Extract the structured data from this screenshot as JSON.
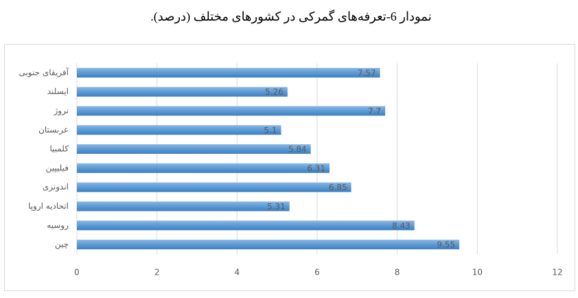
{
  "chart_data": {
    "type": "bar",
    "orientation": "horizontal",
    "title": "نمودار 6-تعرفه‌های گمرکی در کشورهای مختلف (درصد).",
    "categories": [
      "آفریقای جنوبی",
      "ایسلند",
      "نروژ",
      "عربستان",
      "کلمبیا",
      "فیلیپین",
      "اندونزی",
      "اتحادیه اروپا",
      "روسیه",
      "چین"
    ],
    "values": [
      7.57,
      5.26,
      7.7,
      5.1,
      5.84,
      6.31,
      6.85,
      5.31,
      8.43,
      9.55
    ],
    "color": "#5b9bd5",
    "xlim": [
      0,
      12
    ],
    "xticks": [
      0,
      2,
      4,
      6,
      8,
      10,
      12
    ],
    "grid": true
  }
}
